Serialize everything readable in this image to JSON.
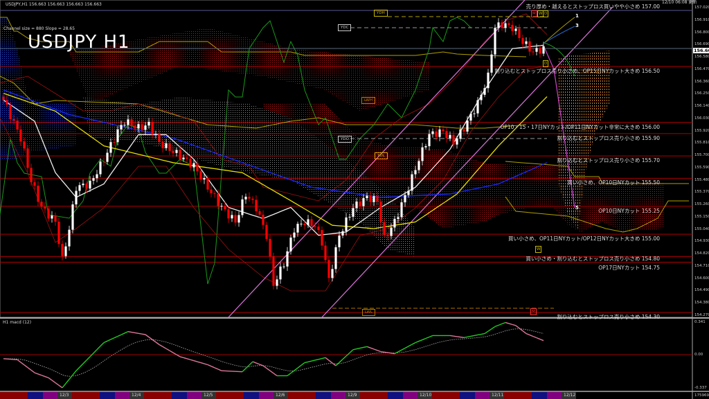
{
  "header": {
    "symbol_line": "USDJPY,H1  156.663 156.663 156.663 156.663",
    "channel_info": "Channel size = 880 Slope = 28.65",
    "big_title": "USDJPY H1",
    "updated": "12/10 06:08 更新",
    "current_price": "156.663"
  },
  "price_axis": [
    "157.020",
    "156.910",
    "156.800",
    "156.690",
    "156.580",
    "156.470",
    "156.360",
    "156.250",
    "156.140",
    "156.030",
    "155.920",
    "155.810",
    "155.700",
    "155.590",
    "155.480",
    "155.370",
    "155.260",
    "155.150",
    "155.040",
    "154.930",
    "154.820",
    "154.710",
    "154.600",
    "154.490",
    "154.380",
    "154.270"
  ],
  "levels": [
    {
      "price": 157.0,
      "text": "売り厚め・越えるとストップロス買いやや小さめ 157.00"
    },
    {
      "price": 156.5,
      "text": "割り込むとストップロス売り小さめ、OP15日NYカット大きめ 156.50"
    },
    {
      "price": 156.0,
      "text": "OP10・15・17日NYカット/OP11日NYカット非常に大きめ 156.00"
    },
    {
      "price": 155.9,
      "text": "割り込むとストップロス売り小さめ 155.90"
    },
    {
      "price": 155.7,
      "text": "割り込むとストップロス売り小さめ 155.70"
    },
    {
      "price": 155.5,
      "text": "買い小さめ、OP10日NYカット 155.50"
    },
    {
      "price": 155.25,
      "text": "OP10日NYカット 155.25"
    },
    {
      "price": 155.0,
      "text": "買い小さめ、OP11日NYカット/OP12日NYカット大きめ 155.00"
    },
    {
      "price": 154.8,
      "text": "買い小さめ・割り込むとストップロス売り小さめ 154.80"
    },
    {
      "price": 154.75,
      "text": "OP17日NYカット 154.75"
    },
    {
      "price": 154.3,
      "text": "割り込むとストップロス売り小さめ 154.30"
    }
  ],
  "tags": {
    "ydh": "YDH",
    "ydc": "YDC",
    "lwh": "LWH",
    "ydo": "YDO",
    "ydl": "YDL",
    "lwl": "LWL",
    "m": "M",
    "w": "W",
    "d": "D"
  },
  "projection_labels": [
    "1",
    "3",
    "5"
  ],
  "macd": {
    "title": "H1  macd (12)",
    "axis": [
      "0.341",
      "0.00",
      "-0.337"
    ],
    "footer_value": "175969",
    "values": [
      [
        0,
        -0.04
      ],
      [
        4,
        -0.05
      ],
      [
        9,
        -0.18
      ],
      [
        13,
        -0.23
      ],
      [
        17,
        -0.33
      ],
      [
        21,
        -0.16
      ],
      [
        29,
        0.12
      ],
      [
        36,
        0.23
      ],
      [
        41,
        0.2
      ],
      [
        45,
        0.1
      ],
      [
        51,
        -0.02
      ],
      [
        59,
        -0.1
      ],
      [
        63,
        -0.16
      ],
      [
        69,
        -0.17
      ],
      [
        72,
        -0.07
      ],
      [
        75,
        -0.11
      ],
      [
        79,
        -0.21
      ],
      [
        82,
        -0.21
      ],
      [
        87,
        -0.08
      ],
      [
        93,
        -0.03
      ],
      [
        96,
        -0.11
      ],
      [
        101,
        0.05
      ],
      [
        105,
        0.08
      ],
      [
        109,
        0.03
      ],
      [
        113,
        0.01
      ],
      [
        119,
        0.12
      ],
      [
        124,
        0.19
      ],
      [
        129,
        0.19
      ],
      [
        133,
        0.17
      ],
      [
        136,
        0.19
      ],
      [
        139,
        0.21
      ],
      [
        142,
        0.28
      ],
      [
        145,
        0.32
      ],
      [
        148,
        0.29
      ],
      [
        151,
        0.21
      ],
      [
        156,
        0.14
      ]
    ]
  },
  "dates": [
    "12/3",
    "12/4",
    "12/5",
    "12/6",
    "12/9",
    "12/10",
    "12/11",
    "12/12"
  ],
  "chart_data": {
    "type": "candlestick",
    "symbol": "USDJPY",
    "timeframe": "H1",
    "ylim": [
      154.27,
      157.02
    ],
    "close_keypoints": [
      [
        0,
        156.2
      ],
      [
        5,
        155.86
      ],
      [
        8,
        155.48
      ],
      [
        11,
        155.24
      ],
      [
        15,
        155.11
      ],
      [
        17,
        154.77
      ],
      [
        19,
        155.05
      ],
      [
        21,
        155.42
      ],
      [
        25,
        155.45
      ],
      [
        29,
        155.67
      ],
      [
        33,
        155.92
      ],
      [
        35,
        156.01
      ],
      [
        39,
        155.95
      ],
      [
        42,
        155.98
      ],
      [
        45,
        155.82
      ],
      [
        51,
        155.7
      ],
      [
        55,
        155.61
      ],
      [
        59,
        155.42
      ],
      [
        63,
        155.24
      ],
      [
        67,
        155.11
      ],
      [
        70,
        155.36
      ],
      [
        73,
        155.24
      ],
      [
        76,
        154.99
      ],
      [
        78,
        154.55
      ],
      [
        81,
        154.74
      ],
      [
        84,
        155.05
      ],
      [
        87,
        155.11
      ],
      [
        90,
        155.08
      ],
      [
        92,
        154.93
      ],
      [
        94,
        154.59
      ],
      [
        97,
        154.99
      ],
      [
        101,
        155.24
      ],
      [
        105,
        155.33
      ],
      [
        108,
        155.3
      ],
      [
        110,
        154.96
      ],
      [
        113,
        155.11
      ],
      [
        117,
        155.42
      ],
      [
        120,
        155.67
      ],
      [
        123,
        155.89
      ],
      [
        127,
        155.92
      ],
      [
        130,
        155.82
      ],
      [
        133,
        155.95
      ],
      [
        137,
        156.17
      ],
      [
        140,
        156.41
      ],
      [
        142,
        156.85
      ],
      [
        144,
        156.88
      ],
      [
        147,
        156.85
      ],
      [
        150,
        156.72
      ],
      [
        153,
        156.63
      ],
      [
        156,
        156.66
      ]
    ],
    "ma_white": [
      [
        0,
        156.2
      ],
      [
        9,
        156.01
      ],
      [
        15,
        155.55
      ],
      [
        21,
        155.33
      ],
      [
        29,
        155.45
      ],
      [
        39,
        155.89
      ],
      [
        47,
        155.89
      ],
      [
        55,
        155.67
      ],
      [
        65,
        155.24
      ],
      [
        75,
        155.14
      ],
      [
        83,
        155.24
      ],
      [
        91,
        154.99
      ],
      [
        99,
        155.02
      ],
      [
        109,
        155.24
      ],
      [
        119,
        155.42
      ],
      [
        129,
        155.76
      ],
      [
        139,
        156.29
      ],
      [
        147,
        156.66
      ],
      [
        156,
        156.69
      ]
    ],
    "ma_yellow": [
      [
        0,
        156.26
      ],
      [
        15,
        156.1
      ],
      [
        29,
        155.79
      ],
      [
        49,
        155.64
      ],
      [
        69,
        155.55
      ],
      [
        83,
        155.3
      ],
      [
        95,
        155.08
      ],
      [
        107,
        155.05
      ],
      [
        119,
        155.11
      ],
      [
        131,
        155.36
      ],
      [
        143,
        155.79
      ],
      [
        157,
        156.23
      ]
    ],
    "ma_blue": [
      [
        0,
        156.29
      ],
      [
        19,
        156.07
      ],
      [
        49,
        155.86
      ],
      [
        69,
        155.64
      ],
      [
        89,
        155.42
      ],
      [
        109,
        155.33
      ],
      [
        129,
        155.36
      ],
      [
        143,
        155.45
      ],
      [
        157,
        155.64
      ]
    ],
    "colors": {
      "up": "#ffffff",
      "down": "#ff0000",
      "level_line": "#b00000",
      "channel": "#dd77dd",
      "macd_up": "#22cc22",
      "macd_down": "#dd7799"
    }
  }
}
